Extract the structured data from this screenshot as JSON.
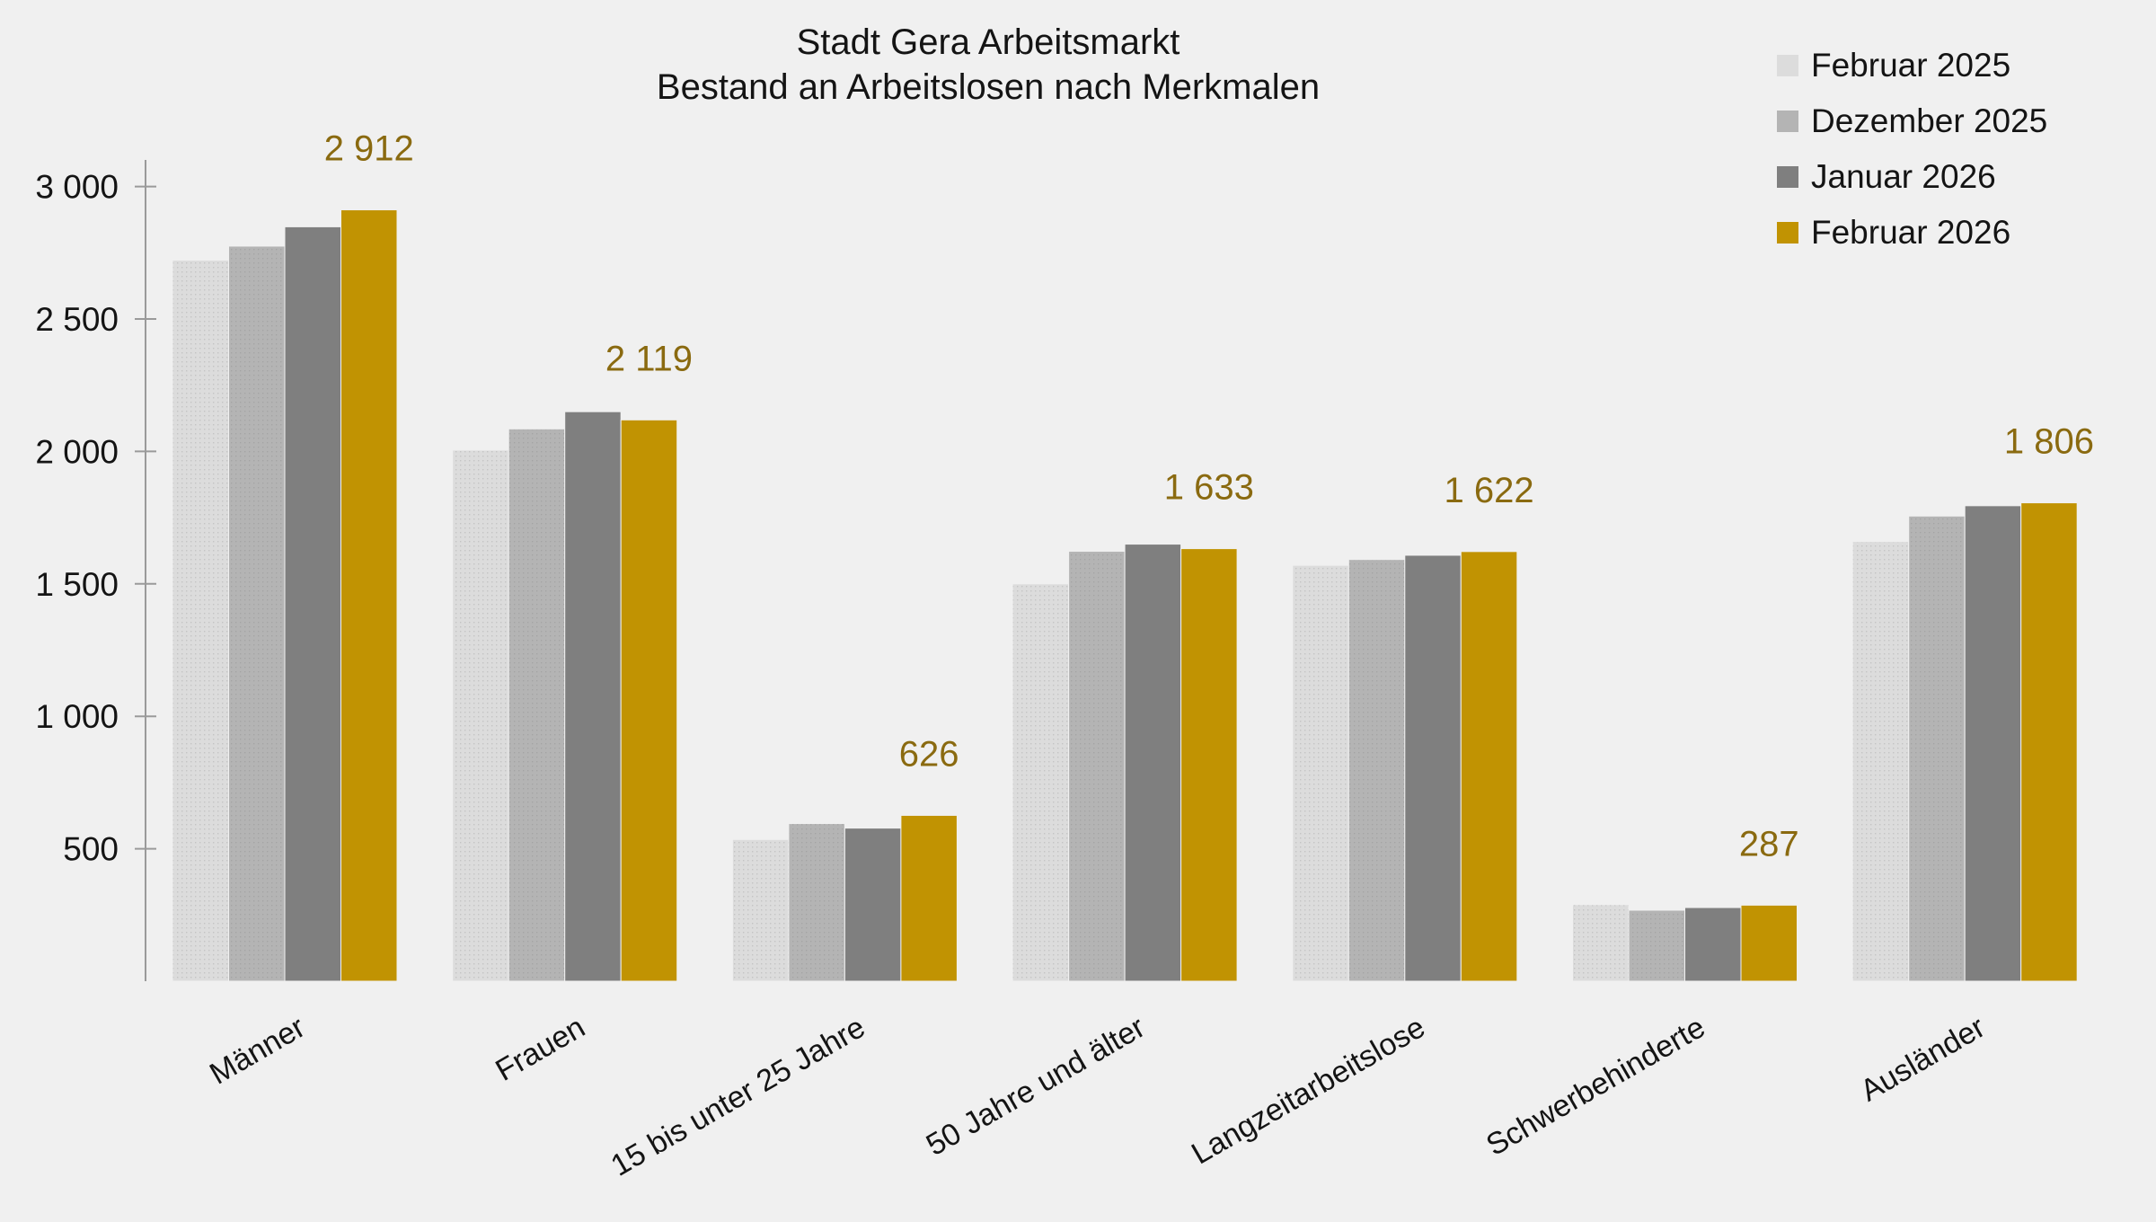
{
  "title": {
    "line1": "Stadt Gera Arbeitsmarkt",
    "line2": "Bestand an Arbeitslosen nach Merkmalen"
  },
  "colors": {
    "background": "#f0f0f0",
    "axis": "#9a9a9a",
    "value_label_text": "#8a6a10",
    "title_text": "#141414"
  },
  "chart_data": {
    "type": "bar",
    "title": "Stadt Gera Arbeitsmarkt\nBestand an Arbeitslosen nach Merkmalen",
    "categories": [
      "Männer",
      "Frauen",
      "15 bis unter 25 Jahre",
      "50 Jahre und älter",
      "Langzeitarbeitslose",
      "Schwerbehinderte",
      "Ausländer"
    ],
    "series": [
      {
        "name": "Februar 2025",
        "color": "#dcdcdc",
        "texture": "dots",
        "values": [
          2722,
          2005,
          535,
          1500,
          1570,
          289,
          1660
        ]
      },
      {
        "name": "Dezember 2025",
        "color": "#b4b4b4",
        "texture": "dots",
        "values": [
          2775,
          2085,
          595,
          1623,
          1592,
          268,
          1756
        ]
      },
      {
        "name": "Januar 2026",
        "color": "#7f7f7f",
        "texture": "none",
        "values": [
          2848,
          2150,
          578,
          1650,
          1608,
          278,
          1795
        ]
      },
      {
        "name": "Februar 2026",
        "color": "#c19302",
        "texture": "none",
        "values": [
          2912,
          2119,
          626,
          1633,
          1622,
          287,
          1806
        ]
      }
    ],
    "value_labels": {
      "series": "Februar 2026",
      "labels": [
        "2 912",
        "2 119",
        "626",
        "1 633",
        "1 622",
        "287",
        "1 806"
      ]
    },
    "yticks": [
      500,
      1000,
      1500,
      2000,
      2500,
      3000
    ],
    "ytick_labels": [
      "500",
      "1 000",
      "1 500",
      "2 000",
      "2 500",
      "3 000"
    ],
    "ylim": [
      0,
      3100
    ],
    "xlabel": "",
    "ylabel": "",
    "grid": false,
    "legend_position": "top-right"
  }
}
